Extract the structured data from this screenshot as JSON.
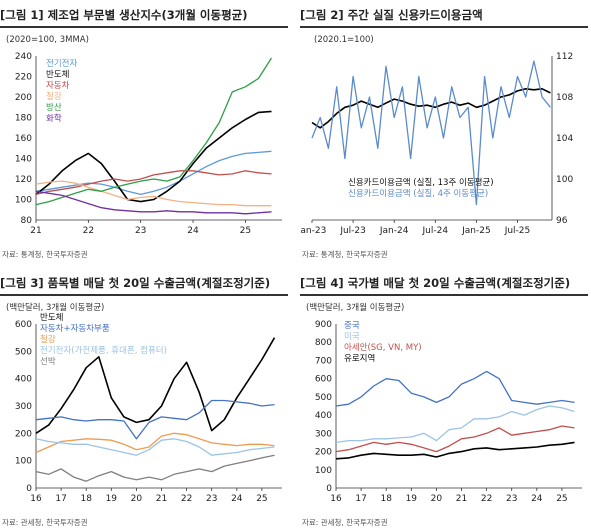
{
  "chart_data": [
    {
      "type": "line",
      "title": "[그림 1] 제조업 부문별 생산지수(3개월 이동평균)",
      "unit_note": "(2020=100, 3MMA)",
      "source": "자료: 통계청, 한국투자증권",
      "x": [
        2021.0,
        2021.25,
        2021.5,
        2021.75,
        2022.0,
        2022.25,
        2022.5,
        2022.75,
        2023.0,
        2023.25,
        2023.5,
        2023.75,
        2024.0,
        2024.25,
        2024.5,
        2024.75,
        2025.0,
        2025.25,
        2025.5
      ],
      "xticks": [
        {
          "v": 2021,
          "label": "21"
        },
        {
          "v": 2022,
          "label": "22"
        },
        {
          "v": 2023,
          "label": "23"
        },
        {
          "v": 2024,
          "label": "24"
        },
        {
          "v": 2025,
          "label": "25"
        }
      ],
      "xlim": [
        2021,
        2025.7
      ],
      "ylim": [
        80,
        240
      ],
      "yticks": [
        80,
        100,
        120,
        140,
        160,
        180,
        200,
        220,
        240
      ],
      "series": [
        {
          "name": "전기전자",
          "color": "#5b9bd5",
          "values": [
            108,
            110,
            112,
            114,
            116,
            115,
            112,
            108,
            105,
            108,
            112,
            118,
            125,
            132,
            138,
            142,
            145,
            146,
            147
          ]
        },
        {
          "name": "반도체",
          "color": "#000000",
          "values": [
            105,
            115,
            128,
            138,
            145,
            135,
            118,
            100,
            98,
            100,
            108,
            118,
            135,
            150,
            160,
            170,
            178,
            185,
            186
          ]
        },
        {
          "name": "자동차",
          "color": "#c0504d",
          "values": [
            105,
            108,
            110,
            112,
            115,
            118,
            120,
            118,
            120,
            124,
            126,
            128,
            128,
            126,
            124,
            125,
            128,
            126,
            125
          ]
        },
        {
          "name": "철강",
          "color": "#f4b183",
          "values": [
            115,
            117,
            118,
            116,
            112,
            108,
            104,
            100,
            102,
            103,
            100,
            98,
            97,
            96,
            95,
            95,
            94,
            94,
            94
          ]
        },
        {
          "name": "방산",
          "color": "#2e9e48",
          "values": [
            95,
            98,
            102,
            106,
            110,
            108,
            112,
            115,
            118,
            120,
            118,
            122,
            138,
            155,
            175,
            205,
            210,
            218,
            238
          ]
        },
        {
          "name": "화학",
          "color": "#7030a0",
          "values": [
            108,
            106,
            104,
            100,
            96,
            92,
            90,
            89,
            88,
            88,
            89,
            88,
            88,
            87,
            87,
            87,
            86,
            87,
            88
          ]
        }
      ]
    },
    {
      "type": "line",
      "title": "[그림 2] 주간 실질 신용카드이용금액",
      "unit_note": "(2020.1=100)",
      "source": "자료: 통계청, 한국투자증권",
      "x": [
        2023.0,
        2023.1,
        2023.2,
        2023.3,
        2023.4,
        2023.5,
        2023.6,
        2023.7,
        2023.8,
        2023.9,
        2024.0,
        2024.1,
        2024.2,
        2024.3,
        2024.4,
        2024.5,
        2024.6,
        2024.7,
        2024.8,
        2024.9,
        2025.0,
        2025.1,
        2025.2,
        2025.3,
        2025.4,
        2025.5,
        2025.6,
        2025.7,
        2025.8,
        2025.9
      ],
      "xticks": [
        {
          "v": 2023.0,
          "label": "Jan-23"
        },
        {
          "v": 2023.5,
          "label": "Jul-23"
        },
        {
          "v": 2024.0,
          "label": "Jan-24"
        },
        {
          "v": 2024.5,
          "label": "Jul-24"
        },
        {
          "v": 2025.0,
          "label": "Jan-25"
        },
        {
          "v": 2025.5,
          "label": "Jul-25"
        }
      ],
      "xlim": [
        2023.0,
        2025.92
      ],
      "ylim": [
        96,
        112
      ],
      "yticks": [
        96,
        100,
        104,
        108,
        112
      ],
      "series": [
        {
          "name": "신용카드이용금액 (실질, 13주 이동평균)",
          "color": "#000000",
          "values": [
            105.5,
            105.0,
            105.6,
            106.4,
            107.0,
            107.2,
            107.6,
            107.3,
            107.0,
            107.4,
            107.8,
            107.6,
            107.3,
            107.1,
            107.2,
            107.0,
            107.3,
            107.5,
            107.2,
            107.4,
            107.0,
            107.2,
            107.6,
            108.0,
            108.2,
            108.6,
            108.8,
            108.7,
            108.8,
            108.4
          ]
        },
        {
          "name": "신용카드이용금액 (실질, 4주 이동평균)",
          "color": "#5b8bc9",
          "values": [
            104,
            106,
            103,
            109,
            102,
            110,
            105,
            108,
            103,
            111,
            106,
            109,
            102,
            110,
            105,
            108,
            104,
            109,
            106,
            107,
            97.5,
            110,
            104,
            109,
            106,
            110,
            108,
            111.5,
            108,
            107
          ]
        }
      ]
    },
    {
      "type": "line",
      "title": "[그림 3] 품목별 매달 첫 20일 수출금액(계절조정기준)",
      "unit_note": "(백만달러, 3개월 이동평균)",
      "source": "자료: 관세청, 한국투자증권",
      "x": [
        2016.0,
        2016.5,
        2017.0,
        2017.5,
        2018.0,
        2018.5,
        2019.0,
        2019.5,
        2020.0,
        2020.5,
        2021.0,
        2021.5,
        2022.0,
        2022.5,
        2023.0,
        2023.5,
        2024.0,
        2024.5,
        2025.0,
        2025.5
      ],
      "xticks": [
        {
          "v": 2016,
          "label": "16"
        },
        {
          "v": 2017,
          "label": "17"
        },
        {
          "v": 2018,
          "label": "18"
        },
        {
          "v": 2019,
          "label": "19"
        },
        {
          "v": 2020,
          "label": "20"
        },
        {
          "v": 2021,
          "label": "21"
        },
        {
          "v": 2022,
          "label": "22"
        },
        {
          "v": 2023,
          "label": "23"
        },
        {
          "v": 2024,
          "label": "24"
        },
        {
          "v": 2025,
          "label": "25"
        }
      ],
      "xlim": [
        2016,
        2025.8
      ],
      "ylim": [
        0,
        600
      ],
      "yticks": [
        0,
        100,
        200,
        300,
        400,
        500,
        600
      ],
      "series": [
        {
          "name": "반도체",
          "color": "#000000",
          "values": [
            200,
            230,
            290,
            360,
            440,
            480,
            330,
            260,
            240,
            250,
            300,
            400,
            460,
            350,
            210,
            250,
            330,
            400,
            470,
            550
          ]
        },
        {
          "name": "자동차+자동차부품",
          "color": "#4472c4",
          "values": [
            250,
            255,
            260,
            250,
            245,
            250,
            250,
            245,
            180,
            240,
            260,
            255,
            250,
            275,
            320,
            320,
            315,
            310,
            300,
            305
          ]
        },
        {
          "name": "철강",
          "color": "#ed9c4f",
          "values": [
            130,
            150,
            170,
            175,
            180,
            178,
            175,
            160,
            140,
            150,
            190,
            200,
            195,
            180,
            165,
            160,
            155,
            160,
            160,
            155
          ]
        },
        {
          "name": "전기전자(가전제품, 휴대폰, 컴퓨터)",
          "color": "#9dc3e6",
          "values": [
            180,
            170,
            165,
            160,
            160,
            150,
            140,
            130,
            120,
            140,
            175,
            180,
            170,
            150,
            120,
            125,
            130,
            140,
            145,
            150
          ]
        },
        {
          "name": "선박",
          "color": "#7f7f7f",
          "values": [
            60,
            50,
            70,
            40,
            25,
            45,
            60,
            40,
            30,
            40,
            30,
            50,
            60,
            70,
            60,
            80,
            90,
            100,
            110,
            120
          ]
        }
      ]
    },
    {
      "type": "line",
      "title": "[그림 4] 국가별 매달 첫 20일 수출금액(계절조정기준)",
      "unit_note": "(백만달러, 3개월 이동평균)",
      "source": "자료: 관세청, 한국투자증권",
      "x": [
        2016.0,
        2016.5,
        2017.0,
        2017.5,
        2018.0,
        2018.5,
        2019.0,
        2019.5,
        2020.0,
        2020.5,
        2021.0,
        2021.5,
        2022.0,
        2022.5,
        2023.0,
        2023.5,
        2024.0,
        2024.5,
        2025.0,
        2025.5
      ],
      "xticks": [
        {
          "v": 2016,
          "label": "16"
        },
        {
          "v": 2017,
          "label": "17"
        },
        {
          "v": 2018,
          "label": "18"
        },
        {
          "v": 2019,
          "label": "19"
        },
        {
          "v": 2020,
          "label": "20"
        },
        {
          "v": 2021,
          "label": "21"
        },
        {
          "v": 2022,
          "label": "22"
        },
        {
          "v": 2023,
          "label": "23"
        },
        {
          "v": 2024,
          "label": "24"
        },
        {
          "v": 2025,
          "label": "25"
        }
      ],
      "xlim": [
        2016,
        2025.8
      ],
      "ylim": [
        0,
        900
      ],
      "yticks": [
        0,
        100,
        200,
        300,
        400,
        500,
        600,
        700,
        800,
        900
      ],
      "series": [
        {
          "name": "중국",
          "color": "#4472c4",
          "values": [
            450,
            460,
            500,
            560,
            600,
            590,
            520,
            500,
            470,
            500,
            570,
            600,
            640,
            600,
            480,
            470,
            460,
            470,
            480,
            470
          ]
        },
        {
          "name": "미국",
          "color": "#9dc3e6",
          "values": [
            250,
            260,
            260,
            270,
            270,
            275,
            280,
            300,
            260,
            320,
            330,
            380,
            380,
            390,
            420,
            400,
            430,
            450,
            440,
            420
          ]
        },
        {
          "name": "아세안(SG, VN, MY)",
          "color": "#c0504d",
          "values": [
            200,
            210,
            230,
            250,
            240,
            250,
            240,
            220,
            200,
            230,
            270,
            280,
            300,
            330,
            290,
            300,
            310,
            320,
            340,
            330
          ]
        },
        {
          "name": "유로지역",
          "color": "#000000",
          "values": [
            160,
            165,
            180,
            190,
            185,
            180,
            180,
            185,
            170,
            190,
            200,
            215,
            220,
            210,
            215,
            220,
            225,
            235,
            240,
            250
          ]
        }
      ]
    }
  ]
}
